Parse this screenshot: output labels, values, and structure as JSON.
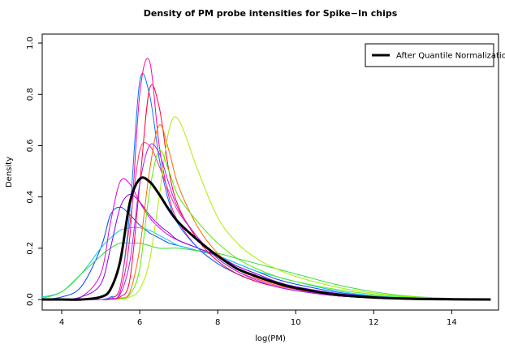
{
  "chart_data": {
    "type": "line",
    "title": "Density of PM probe intensities for Spike−In chips",
    "x_label": "log(PM)",
    "y_label": "Density",
    "x": [
      3.5,
      4,
      4.5,
      5,
      5.25,
      5.5,
      5.75,
      6,
      6.25,
      6.5,
      6.75,
      7,
      7.5,
      8,
      8.5,
      9,
      9.5,
      10,
      11,
      12,
      13,
      14,
      15
    ],
    "xlim": [
      3.5,
      15.2
    ],
    "xticks": [
      4,
      6,
      8,
      10,
      12,
      14
    ],
    "ylim": [
      -0.041,
      1.035
    ],
    "yticks": [
      {
        "value": 0,
        "label": "0.0"
      },
      0.2,
      0.4,
      0.6,
      0.8,
      {
        "value": 1,
        "label": "1.0"
      }
    ],
    "legend_position": "top-right",
    "series": [
      {
        "color": "#0044ff",
        "values": [
          0,
          0.01,
          0.05,
          0.2,
          0.33,
          0.36,
          0.33,
          0.29,
          0.26,
          0.24,
          0.22,
          0.21,
          0.19,
          0.17,
          0.14,
          0.11,
          0.08,
          0.06,
          0.03,
          0.012,
          0.004,
          0.001,
          null
        ]
      },
      {
        "color": "#00ccee",
        "values": [
          0.01,
          0.03,
          0.1,
          0.2,
          0.24,
          0.27,
          0.28,
          0.28,
          0.27,
          0.25,
          0.23,
          0.21,
          0.19,
          0.17,
          0.14,
          0.11,
          0.09,
          0.07,
          0.035,
          0.015,
          0.005,
          0.002,
          null
        ]
      },
      {
        "color": "#33dd33",
        "values": [
          0.005,
          0.03,
          0.1,
          0.17,
          0.2,
          0.22,
          0.22,
          0.22,
          0.21,
          0.2,
          0.2,
          0.2,
          0.19,
          0.18,
          0.16,
          0.14,
          0.12,
          0.1,
          0.06,
          0.03,
          0.012,
          0.004,
          null
        ]
      },
      {
        "color": "#dd00dd",
        "values": [
          0,
          0,
          0.01,
          0.1,
          0.3,
          0.46,
          0.45,
          0.38,
          0.32,
          0.28,
          0.25,
          0.23,
          0.2,
          0.17,
          0.13,
          0.1,
          0.07,
          0.05,
          0.025,
          0.01,
          0.003,
          0.001,
          null
        ]
      },
      {
        "color": "#8800ee",
        "values": [
          0,
          0,
          0.01,
          0.06,
          0.2,
          0.36,
          0.41,
          0.38,
          0.33,
          0.29,
          0.26,
          0.23,
          0.2,
          0.17,
          0.13,
          0.1,
          0.07,
          0.05,
          0.025,
          0.01,
          0.003,
          0.001,
          null
        ]
      },
      {
        "color": "#ff00aa",
        "values": [
          0,
          0,
          0,
          0,
          0.005,
          0.03,
          0.25,
          0.8,
          0.93,
          0.6,
          0.4,
          0.3,
          0.2,
          0.14,
          0.1,
          0.07,
          0.05,
          0.035,
          0.015,
          0.006,
          0.002,
          0.001,
          null
        ]
      },
      {
        "color": "#0077ff",
        "values": [
          0,
          0,
          0,
          0,
          0.01,
          0.05,
          0.35,
          0.85,
          0.8,
          0.55,
          0.38,
          0.29,
          0.2,
          0.14,
          0.1,
          0.07,
          0.05,
          0.035,
          0.015,
          0.006,
          0.002,
          0.001,
          null
        ]
      },
      {
        "color": "#ff0033",
        "values": [
          0,
          0,
          0,
          0,
          0,
          0.01,
          0.08,
          0.45,
          0.82,
          0.75,
          0.5,
          0.36,
          0.23,
          0.15,
          0.1,
          0.07,
          0.05,
          0.035,
          0.015,
          0.006,
          0.002,
          0.001,
          null
        ]
      },
      {
        "color": "#ff6600",
        "values": [
          0,
          0,
          0,
          0,
          0,
          0.005,
          0.03,
          0.2,
          0.5,
          0.68,
          0.58,
          0.44,
          0.28,
          0.18,
          0.12,
          0.085,
          0.06,
          0.04,
          0.018,
          0.007,
          0.002,
          0.001,
          null
        ]
      },
      {
        "color": "#ff3366",
        "values": [
          0,
          0,
          0,
          0,
          0.005,
          0.05,
          0.3,
          0.58,
          0.6,
          0.52,
          0.42,
          0.34,
          0.24,
          0.16,
          0.11,
          0.08,
          0.055,
          0.04,
          0.017,
          0.007,
          0.002,
          0.001,
          null
        ]
      },
      {
        "color": "#aaee00",
        "values": [
          0,
          0,
          0,
          0,
          0,
          0.002,
          0.01,
          0.04,
          0.15,
          0.4,
          0.66,
          0.7,
          0.5,
          0.32,
          0.22,
          0.16,
          0.12,
          0.09,
          0.05,
          0.025,
          0.01,
          0.004,
          null
        ]
      },
      {
        "color": "#55ee00",
        "values": [
          0,
          0,
          0,
          0,
          0,
          0.003,
          0.02,
          0.12,
          0.42,
          0.58,
          0.5,
          0.4,
          0.3,
          0.22,
          0.16,
          0.12,
          0.09,
          0.07,
          0.04,
          0.02,
          0.008,
          0.003,
          null
        ]
      },
      {
        "color": "#aa22ff",
        "values": [
          0,
          0,
          0,
          0,
          0.002,
          0.02,
          0.15,
          0.45,
          0.6,
          0.57,
          0.45,
          0.35,
          0.24,
          0.16,
          0.11,
          0.075,
          0.05,
          0.035,
          0.015,
          0.006,
          0.002,
          0.001,
          null
        ]
      },
      {
        "name": "After Quantile Normalization",
        "color": "#000000",
        "width": 3,
        "values": [
          0,
          0,
          0,
          0.01,
          0.04,
          0.15,
          0.38,
          0.47,
          0.46,
          0.41,
          0.35,
          0.3,
          0.23,
          0.17,
          0.12,
          0.09,
          0.065,
          0.045,
          0.02,
          0.008,
          0.003,
          0.001,
          0
        ]
      }
    ]
  }
}
